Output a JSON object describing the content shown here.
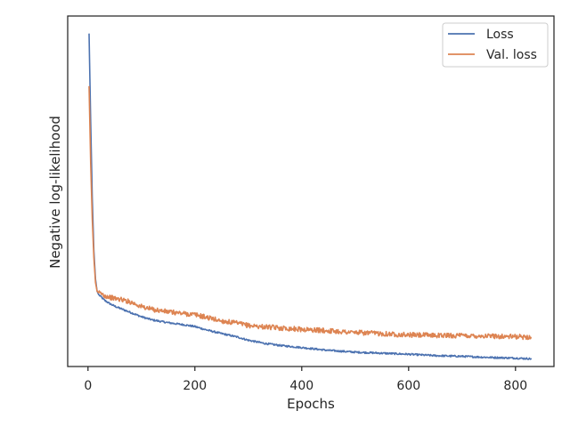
{
  "chart_data": {
    "type": "line",
    "title": "",
    "xlabel": "Epochs",
    "ylabel": "Negative log-likelihood",
    "xlim": [
      -38,
      872
    ],
    "ylim": [
      0,
      100
    ],
    "y_ticks_shown": false,
    "x_ticks": [
      0,
      200,
      400,
      600,
      800
    ],
    "x_tick_labels": [
      "0",
      "200",
      "400",
      "600",
      "800"
    ],
    "grid": false,
    "legend_position": "top-right",
    "legend": [
      "Loss",
      "Val. loss"
    ],
    "series": [
      {
        "name": "Loss",
        "color": "#4c72b0",
        "x": [
          2,
          5,
          8,
          11,
          14,
          17,
          20,
          25,
          30,
          40,
          50,
          60,
          80,
          100,
          120,
          150,
          180,
          200,
          220,
          250,
          280,
          300,
          330,
          360,
          400,
          450,
          500,
          550,
          600,
          650,
          700,
          750,
          800,
          830
        ],
        "y": [
          95,
          70,
          48,
          33,
          25,
          21.5,
          20.5,
          19.8,
          19,
          18,
          17.2,
          16.6,
          15.4,
          14.2,
          13.3,
          12.5,
          11.9,
          11.4,
          10.5,
          9.4,
          8.4,
          7.5,
          6.6,
          6.0,
          5.4,
          4.6,
          4.1,
          3.8,
          3.5,
          3.1,
          2.9,
          2.6,
          2.4,
          2.2
        ],
        "noise": 0.25
      },
      {
        "name": "Val. loss",
        "color": "#dd8452",
        "x": [
          2,
          5,
          8,
          11,
          14,
          17,
          20,
          25,
          30,
          40,
          50,
          60,
          80,
          100,
          120,
          150,
          180,
          200,
          220,
          250,
          280,
          300,
          330,
          360,
          400,
          450,
          500,
          550,
          600,
          650,
          700,
          750,
          800,
          830
        ],
        "y": [
          80,
          58,
          42,
          31,
          24,
          21.5,
          21,
          20.8,
          20.3,
          19.8,
          19.4,
          19.2,
          18.4,
          17.1,
          16.3,
          15.6,
          15.1,
          14.8,
          14.1,
          13.0,
          12.3,
          11.7,
          11.3,
          11.0,
          10.6,
          10.2,
          9.7,
          9.4,
          9.0,
          8.9,
          8.8,
          8.7,
          8.5,
          8.4
        ],
        "noise": 0.7
      }
    ]
  }
}
